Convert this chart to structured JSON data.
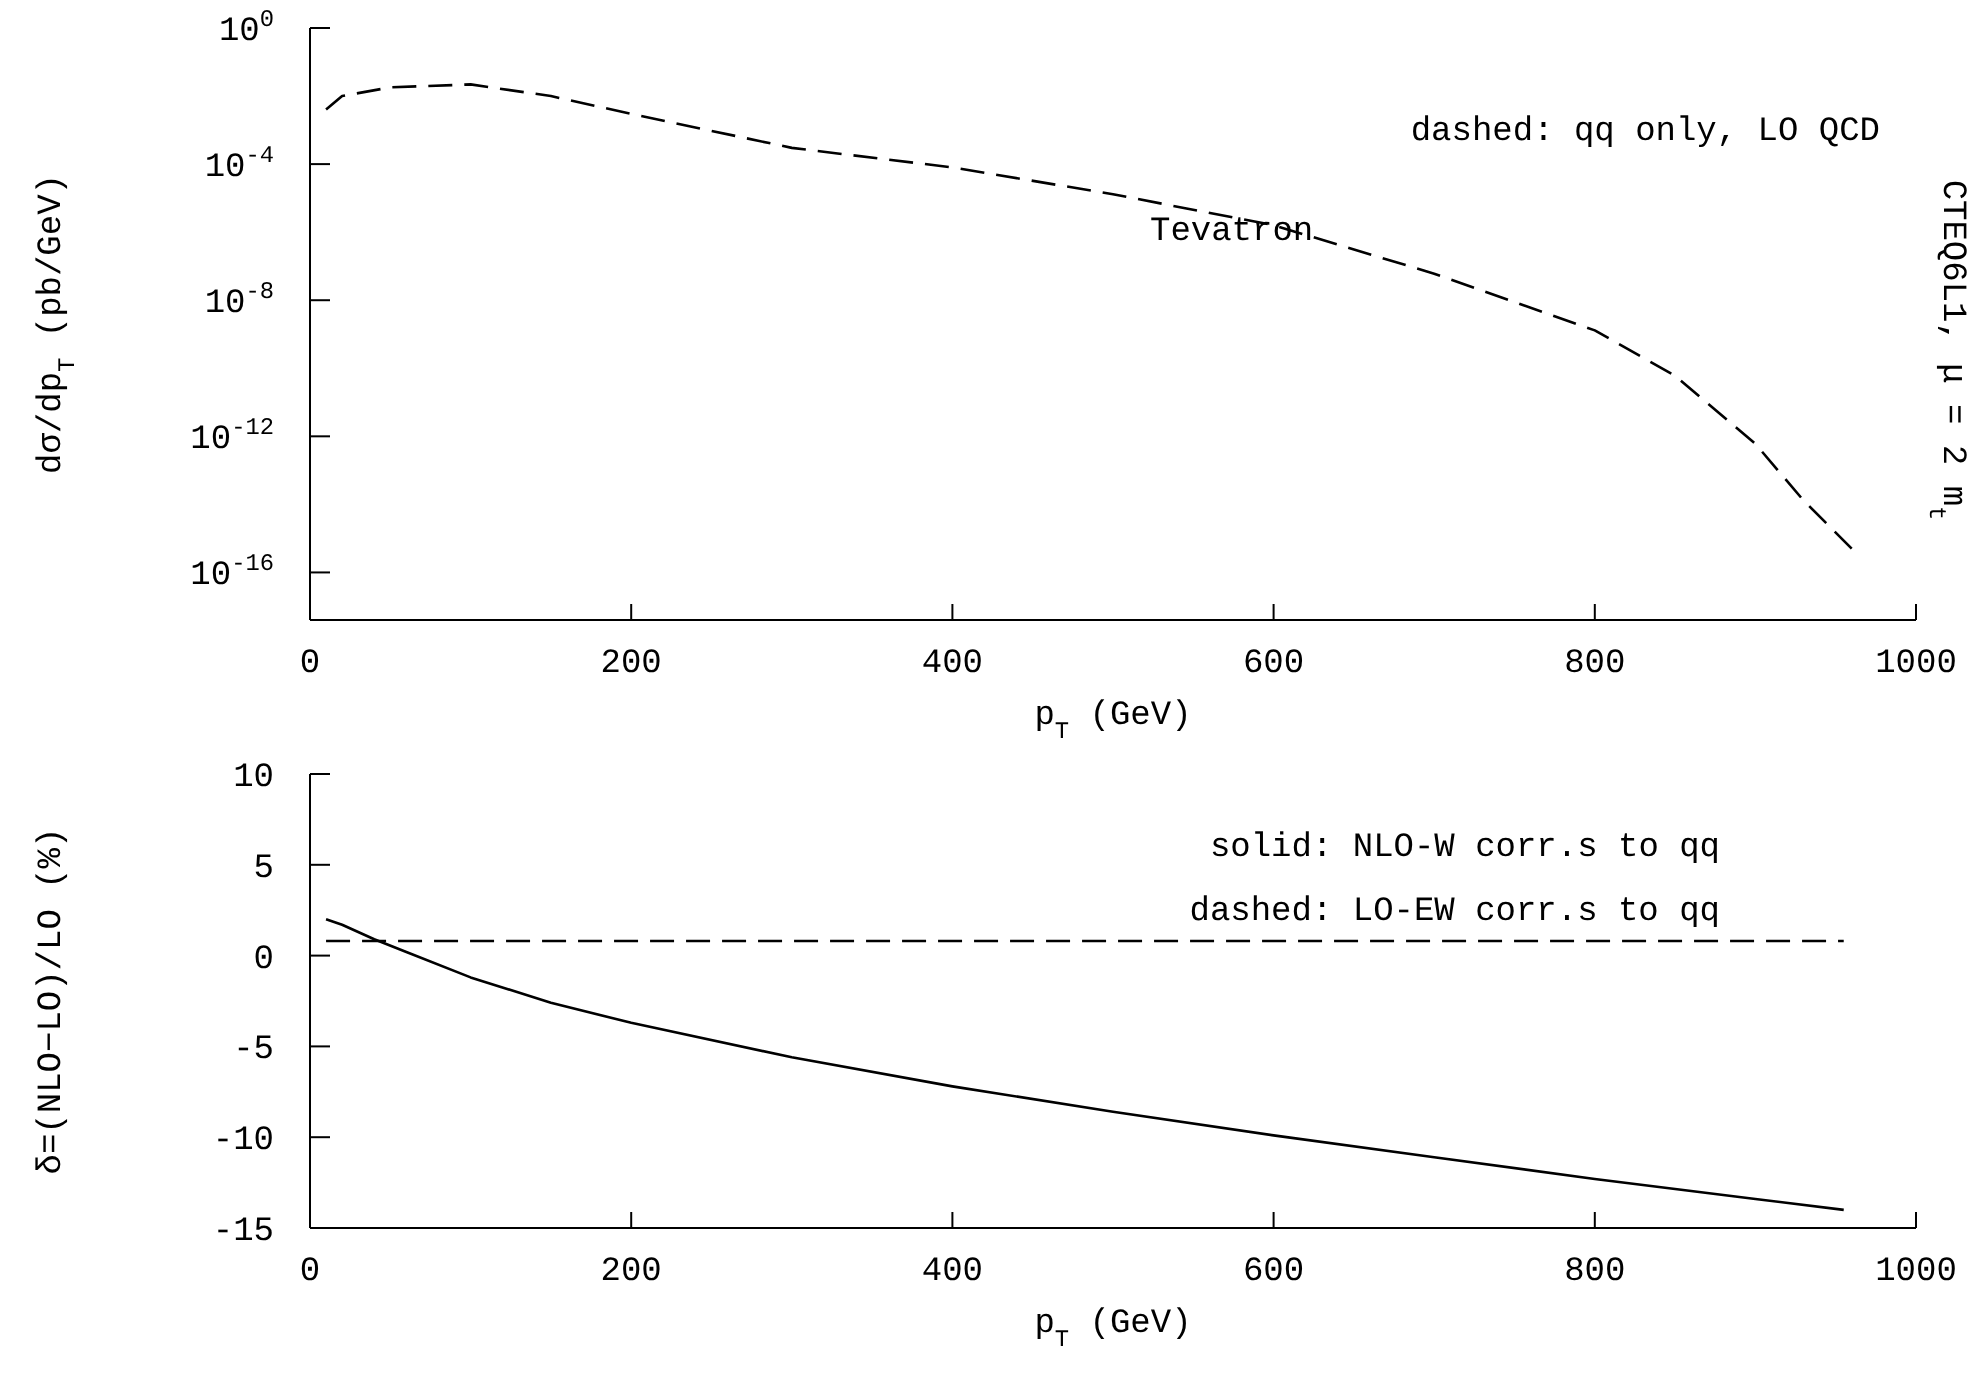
{
  "chart_data": [
    {
      "type": "line",
      "xlabel": "p$_{T}$ (GeV)",
      "ylabel": "dσ/dp$_{T}$ (pb/GeV)",
      "log": true,
      "xlim": [
        0,
        1000
      ],
      "xticks": [
        0,
        200,
        400,
        600,
        800,
        1000
      ],
      "ylim": [
        4e-18,
        1
      ],
      "yticks": [
        {
          "value": 1,
          "label": "10$^{0}$"
        },
        {
          "value": 0.0001,
          "label": "10$^{-4}$"
        },
        {
          "value": 1e-08,
          "label": "10$^{-8}$"
        },
        {
          "value": 1e-12,
          "label": "10$^{-12}$"
        },
        {
          "value": 1e-16,
          "label": "10$^{-16}$"
        }
      ],
      "marker": "none",
      "annotations": [
        "dashed: qq only, LO QCD",
        "Tevatron",
        "CTEQ6L1, μ = 2 m$_{t}$"
      ],
      "series": [
        {
          "color": "#000000",
          "line_style": "dashed",
          "x": [
            10,
            20,
            50,
            100,
            150,
            200,
            300,
            400,
            500,
            600,
            700,
            800,
            850,
            900,
            930,
            960
          ],
          "values": [
            0.004,
            0.01,
            0.018,
            0.022,
            0.01,
            0.003,
            0.0003,
            8e-05,
            1.3e-05,
            1.6e-06,
            6e-08,
            1.3e-09,
            6e-11,
            6e-13,
            1.3e-14,
            5e-16
          ]
        }
      ]
    },
    {
      "type": "line",
      "xlabel": "p$_{T}$ (GeV)",
      "ylabel": "δ=(NLO−LO)/LO (%)",
      "xlim": [
        0,
        1000
      ],
      "xticks": [
        0,
        200,
        400,
        600,
        800,
        1000
      ],
      "ylim": [
        -15,
        10
      ],
      "yticks": [
        -15,
        -10,
        -5,
        0,
        5,
        10
      ],
      "marker": "none",
      "annotations": [
        "solid: NLO-W corr.s to qq",
        "dashed: LO-EW corr.s to qq"
      ],
      "series": [
        {
          "color": "#000000",
          "line_style": "solid",
          "x": [
            10,
            20,
            40,
            60,
            100,
            150,
            200,
            300,
            400,
            500,
            600,
            700,
            800,
            900,
            955
          ],
          "values": [
            2.0,
            1.7,
            0.9,
            0.2,
            -1.2,
            -2.6,
            -3.7,
            -5.6,
            -7.2,
            -8.6,
            -9.9,
            -11.1,
            -12.3,
            -13.4,
            -14
          ]
        },
        {
          "color": "#000000",
          "line_style": "dashed",
          "x": [
            10,
            955
          ],
          "values": [
            0.8,
            0.8
          ]
        }
      ]
    }
  ]
}
